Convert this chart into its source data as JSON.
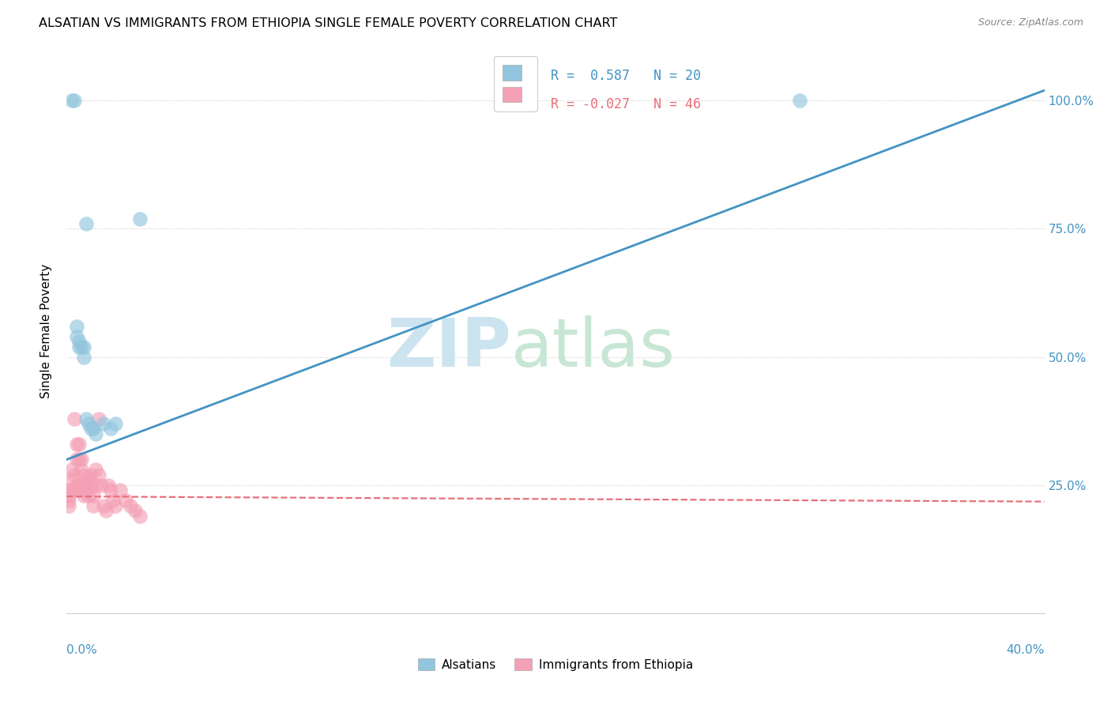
{
  "title": "ALSATIAN VS IMMIGRANTS FROM ETHIOPIA SINGLE FEMALE POVERTY CORRELATION CHART",
  "source": "Source: ZipAtlas.com",
  "ylabel": "Single Female Poverty",
  "right_yticks": [
    "100.0%",
    "75.0%",
    "50.0%",
    "25.0%"
  ],
  "right_ytick_vals": [
    1.0,
    0.75,
    0.5,
    0.25
  ],
  "legend_blue_r": "0.587",
  "legend_blue_n": "20",
  "legend_pink_r": "-0.027",
  "legend_pink_n": "46",
  "legend_label_blue": "Alsatians",
  "legend_label_pink": "Immigrants from Ethiopia",
  "blue_color": "#92c5de",
  "pink_color": "#f4a0b5",
  "blue_line_color": "#4393c3",
  "pink_line_color": "#e8707a",
  "xlim": [
    0.0,
    0.4
  ],
  "ylim": [
    0.0,
    1.1
  ],
  "alsatians_x": [
    0.002,
    0.003,
    0.004,
    0.004,
    0.005,
    0.005,
    0.006,
    0.007,
    0.007,
    0.008,
    0.008,
    0.009,
    0.01,
    0.011,
    0.012,
    0.015,
    0.018,
    0.02,
    0.03,
    0.3
  ],
  "alsatians_y": [
    1.0,
    1.0,
    0.56,
    0.54,
    0.53,
    0.52,
    0.52,
    0.5,
    0.52,
    0.76,
    0.38,
    0.37,
    0.36,
    0.36,
    0.35,
    0.37,
    0.36,
    0.37,
    0.77,
    1.0
  ],
  "ethiopia_x": [
    0.001,
    0.001,
    0.001,
    0.001,
    0.002,
    0.002,
    0.002,
    0.003,
    0.003,
    0.003,
    0.004,
    0.004,
    0.004,
    0.005,
    0.005,
    0.005,
    0.006,
    0.006,
    0.006,
    0.007,
    0.007,
    0.007,
    0.008,
    0.008,
    0.009,
    0.009,
    0.01,
    0.01,
    0.011,
    0.011,
    0.012,
    0.012,
    0.013,
    0.013,
    0.014,
    0.015,
    0.016,
    0.017,
    0.018,
    0.019,
    0.02,
    0.022,
    0.024,
    0.026,
    0.028,
    0.03
  ],
  "ethiopia_y": [
    0.24,
    0.23,
    0.22,
    0.21,
    0.28,
    0.26,
    0.24,
    0.38,
    0.27,
    0.24,
    0.33,
    0.3,
    0.25,
    0.33,
    0.3,
    0.24,
    0.3,
    0.28,
    0.25,
    0.27,
    0.25,
    0.23,
    0.26,
    0.24,
    0.26,
    0.23,
    0.27,
    0.25,
    0.23,
    0.21,
    0.28,
    0.25,
    0.38,
    0.27,
    0.25,
    0.21,
    0.2,
    0.25,
    0.24,
    0.22,
    0.21,
    0.24,
    0.22,
    0.21,
    0.2,
    0.19
  ],
  "blue_trend_x": [
    0.0,
    0.4
  ],
  "blue_trend_y": [
    0.3,
    1.02
  ],
  "pink_trend_x": [
    0.0,
    0.4
  ],
  "pink_trend_y": [
    0.228,
    0.218
  ],
  "xtick_vals": [
    0.0,
    0.05,
    0.1,
    0.15,
    0.2,
    0.25,
    0.3,
    0.35,
    0.4
  ],
  "ytick_vals": [
    0.25,
    0.5,
    0.75,
    1.0
  ],
  "grid_vals": [
    0.25,
    0.5,
    0.75,
    1.0
  ]
}
